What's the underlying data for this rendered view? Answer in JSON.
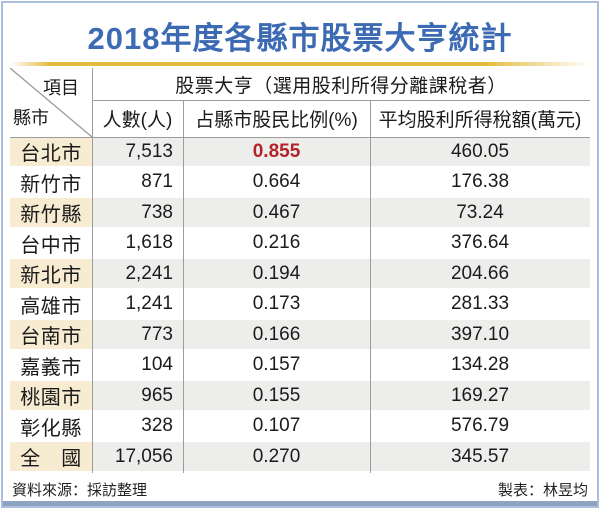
{
  "title": "2018年度各縣市股票大亨統計",
  "table": {
    "corner": {
      "top": "項目",
      "bottom": "縣市"
    },
    "group_header": "股票大亨（選用股利所得分離課稅者）",
    "columns": [
      "人數(人)",
      "占縣市股民比例(%)",
      "平均股利所得稅額(萬元)"
    ],
    "rows": [
      {
        "region": "台北市",
        "count": "7,513",
        "ratio": "0.855",
        "avg_tax": "460.05",
        "highlight": true
      },
      {
        "region": "新竹市",
        "count": "871",
        "ratio": "0.664",
        "avg_tax": "176.38"
      },
      {
        "region": "新竹縣",
        "count": "738",
        "ratio": "0.467",
        "avg_tax": "73.24"
      },
      {
        "region": "台中市",
        "count": "1,618",
        "ratio": "0.216",
        "avg_tax": "376.64"
      },
      {
        "region": "新北市",
        "count": "2,241",
        "ratio": "0.194",
        "avg_tax": "204.66"
      },
      {
        "region": "高雄市",
        "count": "1,241",
        "ratio": "0.173",
        "avg_tax": "281.33"
      },
      {
        "region": "台南市",
        "count": "773",
        "ratio": "0.166",
        "avg_tax": "397.10"
      },
      {
        "region": "嘉義市",
        "count": "104",
        "ratio": "0.157",
        "avg_tax": "134.28"
      },
      {
        "region": "桃園市",
        "count": "965",
        "ratio": "0.155",
        "avg_tax": "169.27"
      },
      {
        "region": "彰化縣",
        "count": "328",
        "ratio": "0.107",
        "avg_tax": "576.79"
      },
      {
        "region": "全　國",
        "count": "17,056",
        "ratio": "0.270",
        "avg_tax": "345.57"
      }
    ]
  },
  "footer": {
    "source": "資料來源：採訪整理",
    "credit": "製表：林昱均"
  },
  "colors": {
    "title_blue": "#3c6bb3",
    "accent_gold": "#e3bc3d",
    "highlight_red": "#b2232a",
    "region_shade": "#f7ebd1",
    "row_shade": "#edeeec",
    "frame_blue": "#abbedb",
    "bottom_bar": "#8ca3c3"
  },
  "chart_data": {
    "type": "table",
    "title": "2018年度各縣市股票大亨統計",
    "columns": [
      "縣市",
      "人數(人)",
      "占縣市股民比例(%)",
      "平均股利所得稅額(萬元)"
    ],
    "rows": [
      [
        "台北市",
        7513,
        0.855,
        460.05
      ],
      [
        "新竹市",
        871,
        0.664,
        176.38
      ],
      [
        "新竹縣",
        738,
        0.467,
        73.24
      ],
      [
        "台中市",
        1618,
        0.216,
        376.64
      ],
      [
        "新北市",
        2241,
        0.194,
        204.66
      ],
      [
        "高雄市",
        1241,
        0.173,
        281.33
      ],
      [
        "台南市",
        773,
        0.166,
        397.1
      ],
      [
        "嘉義市",
        104,
        0.157,
        134.28
      ],
      [
        "桃園市",
        965,
        0.155,
        169.27
      ],
      [
        "彰化縣",
        328,
        0.107,
        576.79
      ],
      [
        "全國",
        17056,
        0.27,
        345.57
      ]
    ],
    "group_header": "股票大亨（選用股利所得分離課稅者）",
    "highlighted_value": {
      "row": "台北市",
      "column": "占縣市股民比例(%)",
      "value": 0.855
    },
    "source": "資料來源：採訪整理",
    "credit": "製表：林昱均"
  }
}
